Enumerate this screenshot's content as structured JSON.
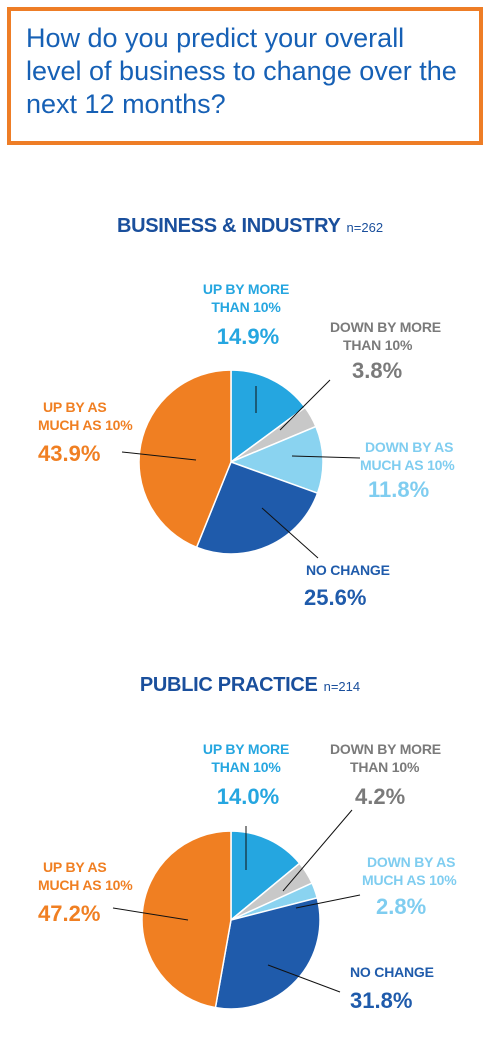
{
  "question": "How do you predict your overall level of business to change over the next 12 months?",
  "colors": {
    "up_more": "#25a6e0",
    "down_more": "#c8c8c8",
    "down_as_much": "#8ad3f0",
    "no_change": "#1f5bab",
    "up_as_much": "#f07f22",
    "frame": "#ee7d26",
    "title": "#1a4f9c"
  },
  "chart_data": [
    {
      "type": "pie",
      "title": "BUSINESS & INDUSTRY",
      "n_label": "n=262",
      "slices": [
        {
          "label_line1": "UP BY MORE",
          "label_line2": "THAN 10%",
          "value": 14.9,
          "value_label": "14.9%",
          "color": "#25a6e0",
          "text_color": "#25a6e0"
        },
        {
          "label_line1": "DOWN BY MORE",
          "label_line2": "THAN 10%",
          "value": 3.8,
          "value_label": "3.8%",
          "color": "#c8c8c8",
          "text_color": "#7a7a7a"
        },
        {
          "label_line1": "DOWN BY AS",
          "label_line2": "MUCH AS 10%",
          "value": 11.8,
          "value_label": "11.8%",
          "color": "#8ad3f0",
          "text_color": "#7fcdf0"
        },
        {
          "label_line1": "NO CHANGE",
          "label_line2": "",
          "value": 25.6,
          "value_label": "25.6%",
          "color": "#1f5bab",
          "text_color": "#1f5bab"
        },
        {
          "label_line1": "UP BY AS",
          "label_line2": "MUCH AS 10%",
          "value": 43.9,
          "value_label": "43.9%",
          "color": "#f07f22",
          "text_color": "#f07f22"
        }
      ]
    },
    {
      "type": "pie",
      "title": "PUBLIC PRACTICE",
      "n_label": "n=214",
      "slices": [
        {
          "label_line1": "UP BY MORE",
          "label_line2": "THAN 10%",
          "value": 14.0,
          "value_label": "14.0%",
          "color": "#25a6e0",
          "text_color": "#25a6e0"
        },
        {
          "label_line1": "DOWN BY MORE",
          "label_line2": "THAN 10%",
          "value": 4.2,
          "value_label": "4.2%",
          "color": "#c8c8c8",
          "text_color": "#7a7a7a"
        },
        {
          "label_line1": "DOWN BY AS",
          "label_line2": "MUCH AS 10%",
          "value": 2.8,
          "value_label": "2.8%",
          "color": "#8ad3f0",
          "text_color": "#7fcdf0"
        },
        {
          "label_line1": "NO CHANGE",
          "label_line2": "",
          "value": 31.8,
          "value_label": "31.8%",
          "color": "#1f5bab",
          "text_color": "#1f5bab"
        },
        {
          "label_line1": "UP BY AS",
          "label_line2": "MUCH AS 10%",
          "value": 47.2,
          "value_label": "47.2%",
          "color": "#f07f22",
          "text_color": "#f07f22"
        }
      ]
    }
  ]
}
